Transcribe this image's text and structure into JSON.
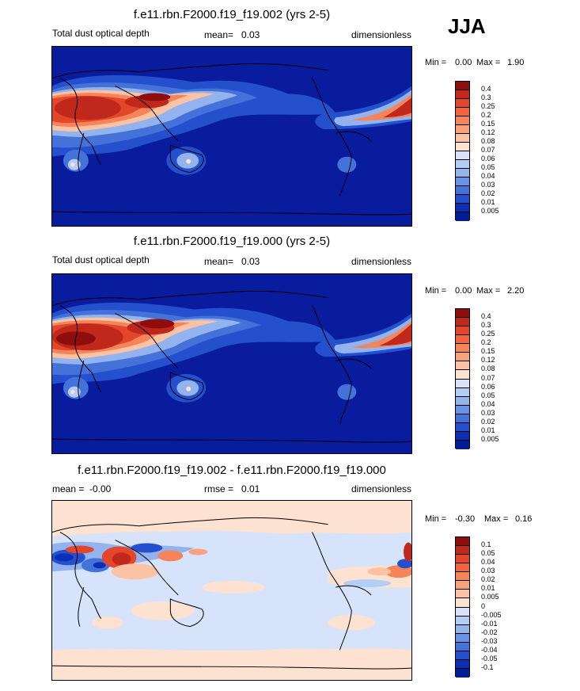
{
  "season": "JJA",
  "chart_data": [
    {
      "type": "heatmap",
      "title": "f.e11.rbn.F2000.f19_f19.002 (yrs 2-5)",
      "variable": "Total dust optical depth",
      "mean_label": "mean=",
      "mean_value": "0.03",
      "units": "dimensionless",
      "min_label": "Min =",
      "min_value": "0.00",
      "max_label": "Max =",
      "max_value": "1.90",
      "levels": [
        "0.4",
        "0.3",
        "0.25",
        "0.2",
        "0.15",
        "0.12",
        "0.08",
        "0.07",
        "0.06",
        "0.05",
        "0.04",
        "0.03",
        "0.02",
        "0.01",
        "0.005"
      ],
      "colors": [
        "#8e0d0d",
        "#c0281b",
        "#e2462b",
        "#f0653f",
        "#f6845a",
        "#f9a37c",
        "#fbc2a3",
        "#fde2d1",
        "#d6e3fb",
        "#b4cdf5",
        "#93b3ee",
        "#6b93e5",
        "#4472d9",
        "#2450ce",
        "#0a2fb4",
        "#001e93"
      ]
    },
    {
      "type": "heatmap",
      "title": "f.e11.rbn.F2000.f19_f19.000 (yrs 2-5)",
      "variable": "Total dust optical depth",
      "mean_label": "mean=",
      "mean_value": "0.03",
      "units": "dimensionless",
      "min_label": "Min =",
      "min_value": "0.00",
      "max_label": "Max =",
      "max_value": "2.20",
      "levels": [
        "0.4",
        "0.3",
        "0.25",
        "0.2",
        "0.15",
        "0.12",
        "0.08",
        "0.07",
        "0.06",
        "0.05",
        "0.04",
        "0.03",
        "0.02",
        "0.01",
        "0.005"
      ],
      "colors": [
        "#8e0d0d",
        "#c0281b",
        "#e2462b",
        "#f0653f",
        "#f6845a",
        "#f9a37c",
        "#fbc2a3",
        "#fde2d1",
        "#d6e3fb",
        "#b4cdf5",
        "#93b3ee",
        "#6b93e5",
        "#4472d9",
        "#2450ce",
        "#0a2fb4",
        "#001e93"
      ]
    },
    {
      "type": "heatmap",
      "title": "f.e11.rbn.F2000.f19_f19.002 - f.e11.rbn.F2000.f19_f19.000",
      "mean_label": "mean =",
      "mean_value": "-0.00",
      "rmse_label": "rmse =",
      "rmse_value": "0.01",
      "units": "dimensionless",
      "min_label": "Min =",
      "min_value": "-0.30",
      "max_label": "Max =",
      "max_value": "0.16",
      "levels": [
        "0.1",
        "0.05",
        "0.04",
        "0.03",
        "0.02",
        "0.01",
        "0.005",
        "0",
        "-0.005",
        "-0.01",
        "-0.02",
        "-0.03",
        "-0.04",
        "-0.05",
        "-0.1"
      ],
      "colors": [
        "#8e0d0d",
        "#c0281b",
        "#e2462b",
        "#f0653f",
        "#f6845a",
        "#f9a37c",
        "#fbc2a3",
        "#fde2d1",
        "#d6e3fb",
        "#b4cdf5",
        "#93b3ee",
        "#6b93e5",
        "#4472d9",
        "#2450ce",
        "#0a2fb4",
        "#001e93"
      ]
    }
  ]
}
